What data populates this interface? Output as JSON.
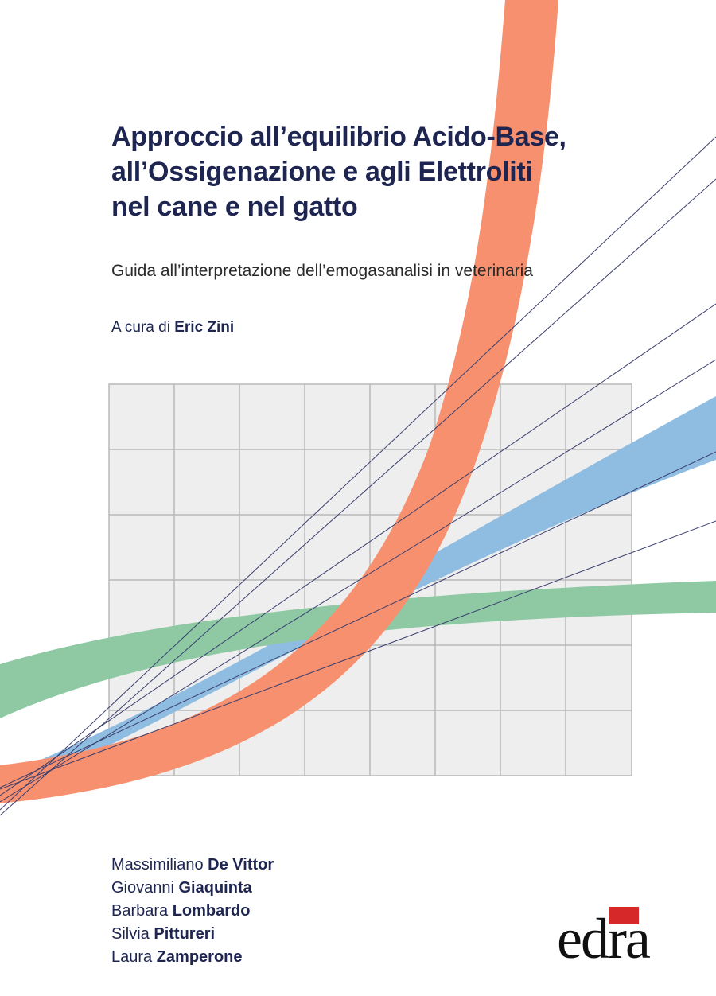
{
  "book": {
    "title_lines": [
      "Approccio all’equilibrio Acido-Base,",
      "all’Ossigenazione e agli Elettroliti",
      "nel cane e nel gatto"
    ],
    "subtitle": "Guida all’interpretazione dell’emogasanalisi in veterinaria",
    "curator_prefix": "A cura di ",
    "curator_name": "Eric Zini",
    "authors": [
      {
        "first": "Massimiliano",
        "last": "De Vittor"
      },
      {
        "first": "Giovanni",
        "last": "Giaquinta"
      },
      {
        "first": "Barbara",
        "last": "Lombardo"
      },
      {
        "first": "Silvia",
        "last": "Pittureri"
      },
      {
        "first": "Laura",
        "last": "Zamperone"
      }
    ],
    "publisher": "edra"
  },
  "colors": {
    "title": "#1d2550",
    "orange_band": "#f7906f",
    "blue_band": "#8fbde2",
    "green_band": "#8ec9a4",
    "grid_fill": "#eeeeee",
    "grid_line": "#b9b9b9",
    "thin_line": "#3a3f6e",
    "logo_accent": "#d62828"
  }
}
